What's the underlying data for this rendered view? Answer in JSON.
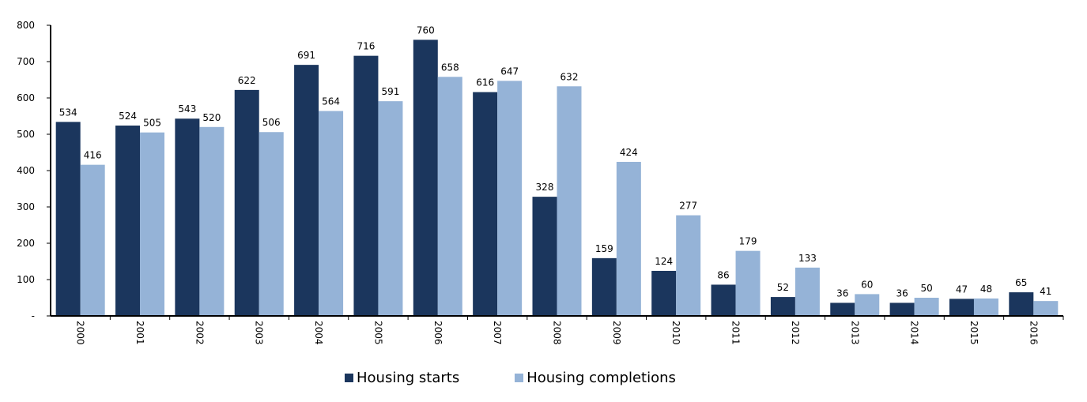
{
  "chart_data": {
    "type": "bar",
    "categories": [
      "2000",
      "2001",
      "2002",
      "2003",
      "2004",
      "2005",
      "2006",
      "2007",
      "2008",
      "2009",
      "2010",
      "2011",
      "2012",
      "2013",
      "2014",
      "2015",
      "2016"
    ],
    "series": [
      {
        "name": "Housing starts",
        "color": "#1b365d",
        "values": [
          534,
          524,
          543,
          622,
          691,
          716,
          760,
          616,
          328,
          159,
          124,
          86,
          52,
          36,
          36,
          47,
          65
        ]
      },
      {
        "name": "Housing completions",
        "color": "#95b3d7",
        "values": [
          416,
          505,
          520,
          506,
          564,
          591,
          658,
          647,
          632,
          424,
          277,
          179,
          133,
          60,
          50,
          48,
          41
        ]
      }
    ],
    "ylim": [
      0,
      800
    ],
    "yticks": [
      "-",
      "100",
      "200",
      "300",
      "400",
      "500",
      "600",
      "700",
      "800"
    ],
    "grid": false,
    "legend_position": "bottom"
  }
}
